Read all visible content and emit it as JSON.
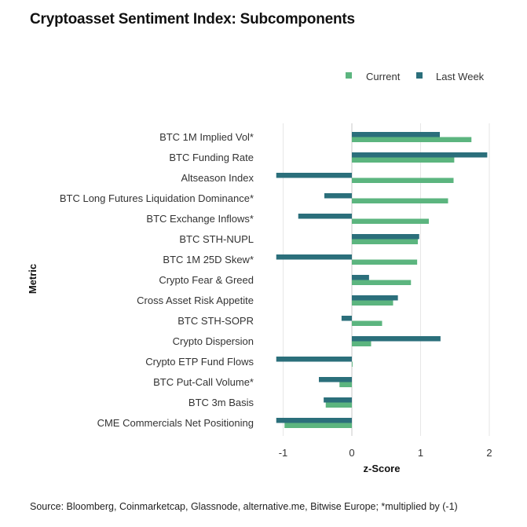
{
  "title": "Cryptoasset Sentiment Index: Subcomponents",
  "source": "Source: Bloomberg, Coinmarketcap, Glassnode, alternative.me, Bitwise Europe; *multiplied by (-1)",
  "colors": {
    "current": "#5cb57f",
    "last_week": "#2b6f7b",
    "grid": "#e6e6e6",
    "zero": "#c8c8c8"
  },
  "chart_data": {
    "type": "bar",
    "orientation": "horizontal",
    "xlabel": "z-Score",
    "ylabel": "Metric",
    "xlim": [
      -1.1,
      2.0
    ],
    "xticks": [
      -1,
      0,
      1,
      2
    ],
    "grid": "vertical",
    "legend": "top-right",
    "categories": [
      "BTC 1M Implied Vol*",
      "BTC Funding Rate",
      "Altseason Index",
      "BTC Long Futures Liquidation Dominance*",
      "BTC Exchange Inflows*",
      "BTC STH-NUPL",
      "BTC 1M 25D Skew*",
      "Crypto Fear & Greed",
      "Cross Asset Risk Appetite",
      "BTC STH-SOPR",
      "Crypto Dispersion",
      "Crypto ETP Fund Flows",
      "BTC Put-Call Volume*",
      "BTC 3m Basis",
      "CME Commercials Net Positioning"
    ],
    "series": [
      {
        "name": "Current",
        "values": [
          1.74,
          1.49,
          1.48,
          1.4,
          1.12,
          0.96,
          0.95,
          0.86,
          0.6,
          0.44,
          0.28,
          0.01,
          -0.18,
          -0.38,
          -0.98
        ]
      },
      {
        "name": "Last Week",
        "values": [
          1.28,
          1.97,
          -1.1,
          -0.4,
          -0.78,
          0.98,
          -1.1,
          0.25,
          0.67,
          -0.15,
          1.29,
          -1.1,
          -0.48,
          -0.41,
          -1.1
        ]
      }
    ]
  }
}
